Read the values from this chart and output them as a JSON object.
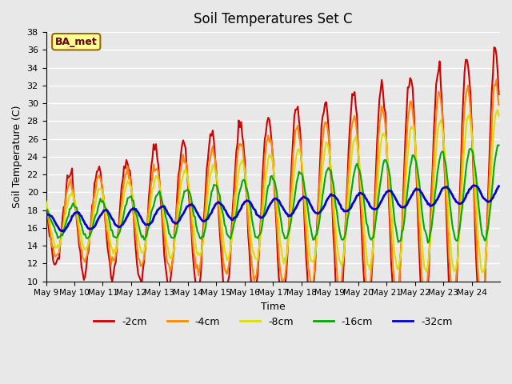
{
  "title": "Soil Temperatures Set C",
  "xlabel": "Time",
  "ylabel": "Soil Temperature (C)",
  "ylim": [
    10,
    38
  ],
  "yticks": [
    10,
    12,
    14,
    16,
    18,
    20,
    22,
    24,
    26,
    28,
    30,
    32,
    34,
    36,
    38
  ],
  "legend_labels": [
    "-2cm",
    "-4cm",
    "-8cm",
    "-16cm",
    "-32cm"
  ],
  "legend_colors": [
    "#cc0000",
    "#ff8800",
    "#dddd00",
    "#00aa00",
    "#0000cc"
  ],
  "line_widths": [
    1.5,
    1.5,
    1.5,
    1.5,
    2.0
  ],
  "annotation_text": "BA_met",
  "annotation_bg": "#ffff99",
  "annotation_border": "#996600",
  "bg_color": "#e8e8e8",
  "grid_color": "#ffffff",
  "xtick_labels": [
    "May 9",
    "May 10",
    "May 11",
    "May 12",
    "May 13",
    "May 14",
    "May 15",
    "May 16",
    "May 17",
    "May 18",
    "May 19",
    "May 20",
    "May 21",
    "May 22",
    "May 23",
    "May 24"
  ],
  "n_days": 16,
  "n_points": 384
}
